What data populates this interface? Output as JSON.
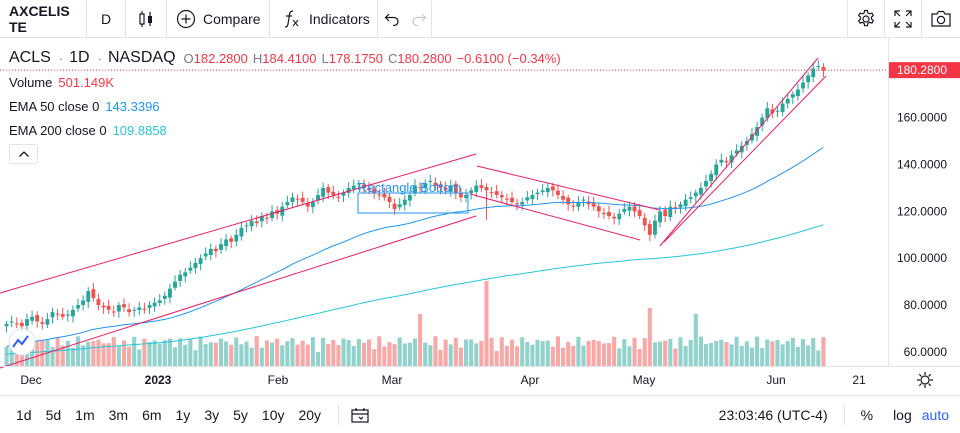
{
  "toolbar": {
    "symbol": "AXCELIS TE",
    "interval": "D",
    "compare_label": "Compare",
    "indicators_label": "Indicators",
    "icons": [
      "candles-icon",
      "plus-circle-icon",
      "fx-icon",
      "undo-icon",
      "redo-icon",
      "gear-icon",
      "fullscreen-icon",
      "camera-icon"
    ]
  },
  "legend": {
    "symbol": "ACLS",
    "interval": "1D",
    "exchange": "NASDAQ",
    "open_label": "O",
    "open": "182.2800",
    "high_label": "H",
    "high": "184.4100",
    "low_label": "L",
    "low": "178.1750",
    "close_label": "C",
    "close": "180.2800",
    "change": "−0.6100 (−0.34%)",
    "volume_label": "Volume",
    "volume_value": "501.149K",
    "ema50_label": "EMA 50 close 0",
    "ema50_value": "143.3396",
    "ema200_label": "EMA 200 close 0",
    "ema200_value": "109.8858"
  },
  "colors": {
    "up": "#26a69a",
    "down": "#ef5350",
    "ema50": "#2196f3",
    "ema200": "#26c6da",
    "channel": "#e91e63",
    "price_tag": "#f23645"
  },
  "chart_data": {
    "type": "candlestick",
    "title": "",
    "x_ticks": [
      "Dec",
      "2023",
      "Feb",
      "Mar",
      "Apr",
      "May",
      "Jun",
      "21"
    ],
    "y_ticks": [
      "160.0000",
      "140.0000",
      "120.0000",
      "100.0000",
      "80.0000",
      "60.0000"
    ],
    "last_price": "180.2800",
    "ylim": [
      54,
      194
    ],
    "annotation": "Rectangle Bottom",
    "closes": [
      72,
      73,
      72,
      71,
      74,
      75,
      73,
      72,
      74,
      77,
      76,
      75,
      76,
      78,
      80,
      82,
      86,
      83,
      80,
      79,
      78,
      77,
      80,
      79,
      77,
      78,
      79,
      78,
      80,
      81,
      82,
      84,
      87,
      90,
      93,
      94,
      96,
      98,
      100,
      102,
      104,
      103,
      106,
      108,
      107,
      110,
      113,
      114,
      116,
      115,
      118,
      117,
      120,
      119,
      122,
      124,
      126,
      125,
      124,
      122,
      124,
      127,
      130,
      128,
      127,
      126,
      128,
      130,
      131,
      132,
      130,
      129,
      128,
      127,
      126,
      124,
      121,
      123,
      125,
      127,
      131,
      130,
      132,
      133,
      131,
      130,
      129,
      131,
      128,
      126,
      127,
      129,
      131,
      130,
      129,
      128,
      127,
      126,
      125,
      124,
      123,
      124,
      126,
      127,
      128,
      129,
      130,
      129,
      127,
      125,
      123,
      122,
      124,
      125,
      123,
      122,
      120,
      119,
      118,
      117,
      119,
      121,
      122,
      120,
      118,
      114,
      110,
      116,
      120,
      118,
      122,
      121,
      123,
      125,
      126,
      128,
      130,
      133,
      136,
      140,
      142,
      141,
      144,
      146,
      148,
      150,
      153,
      156,
      160,
      164,
      162,
      163,
      166,
      168,
      170,
      172,
      175,
      178,
      181,
      182,
      180
    ],
    "volume_scale_max": 100,
    "ema50_start": 62,
    "ema200_start": 59
  },
  "bottom": {
    "ranges": [
      "1d",
      "5d",
      "1m",
      "3m",
      "6m",
      "1y",
      "3y",
      "5y",
      "10y",
      "20y"
    ],
    "clock": "23:03:46 (UTC-4)",
    "percent_label": "%",
    "log_label": "log",
    "auto_label": "auto"
  }
}
